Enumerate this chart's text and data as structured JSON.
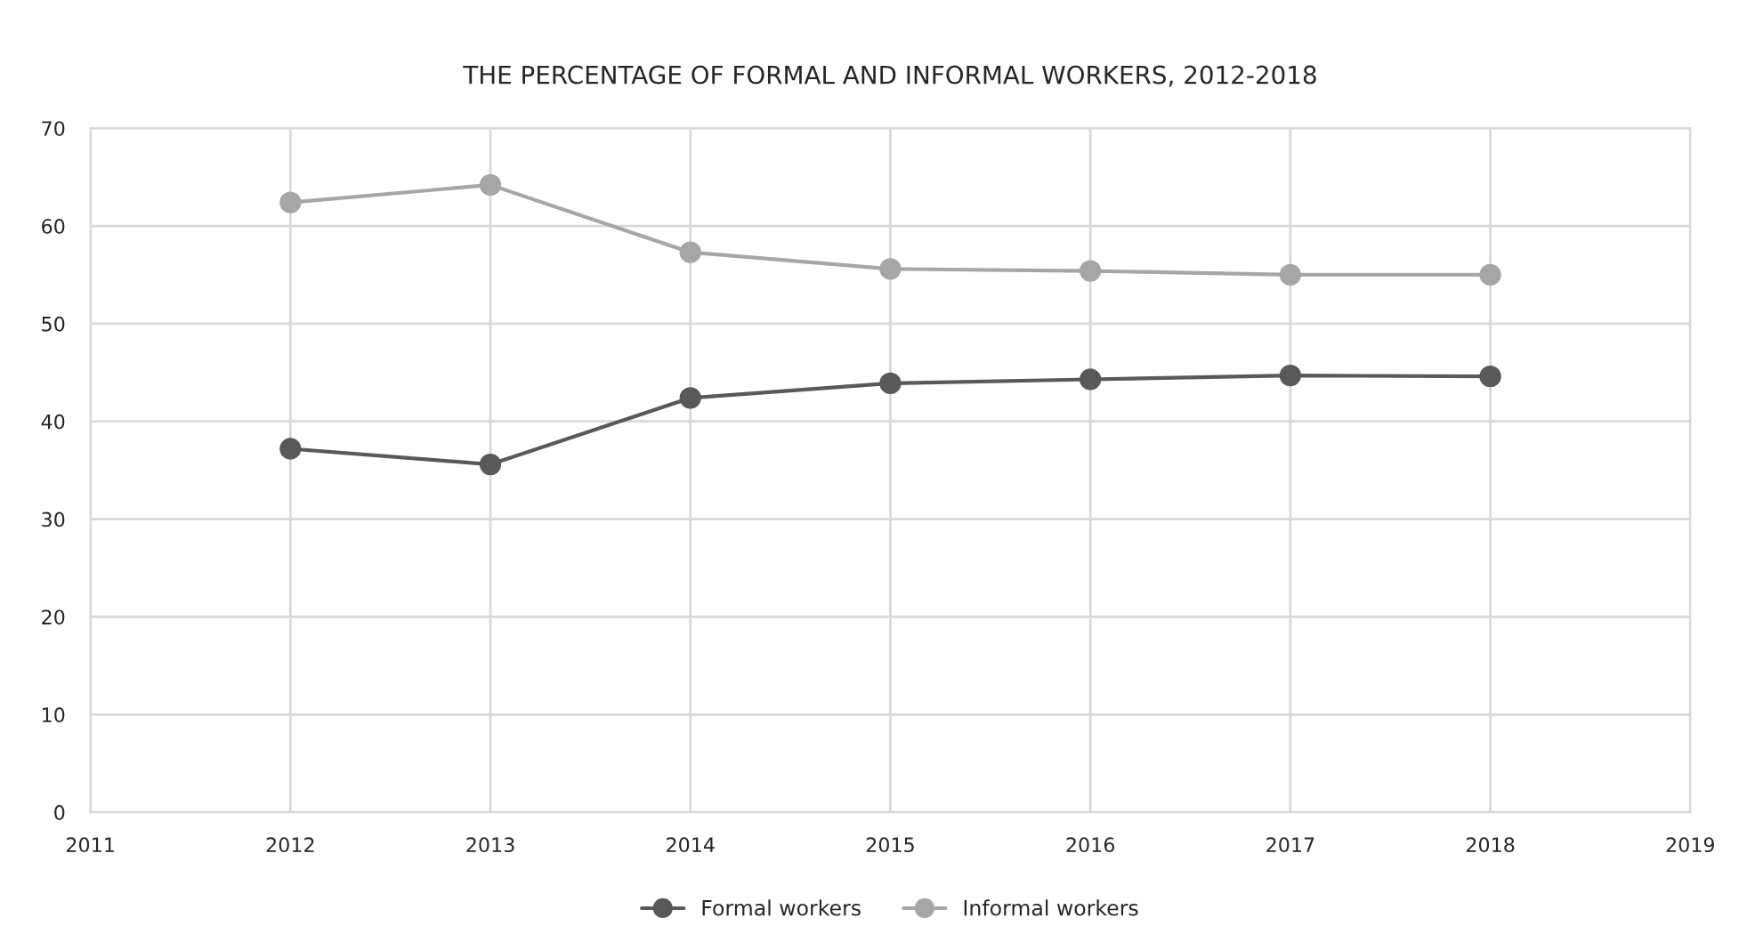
{
  "chart_data": {
    "type": "line",
    "title": "THE PERCENTAGE OF FORMAL AND INFORMAL WORKERS, 2012-2018",
    "x": [
      2012,
      2013,
      2014,
      2015,
      2016,
      2017,
      2018
    ],
    "series": [
      {
        "name": "Formal workers",
        "color": "#595959",
        "values": [
          37.2,
          35.6,
          42.4,
          43.9,
          44.3,
          44.7,
          44.6
        ]
      },
      {
        "name": "Informal workers",
        "color": "#a6a6a6",
        "values": [
          62.4,
          64.2,
          57.3,
          55.6,
          55.4,
          55.0,
          55.0
        ]
      }
    ],
    "xlim": [
      2011,
      2019
    ],
    "xticks": [
      2011,
      2012,
      2013,
      2014,
      2015,
      2016,
      2017,
      2018,
      2019
    ],
    "ylim": [
      0,
      70
    ],
    "yticks": [
      0,
      10,
      20,
      30,
      40,
      50,
      60,
      70
    ],
    "grid": true,
    "legend": "bottom",
    "marker": "circle",
    "line_style": "solid"
  }
}
